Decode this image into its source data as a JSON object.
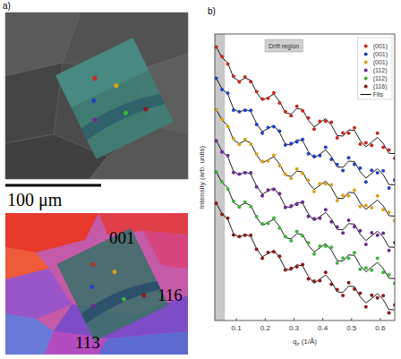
{
  "panel_a": {
    "panel_label": "a)",
    "scale_bar": "100 μm",
    "grain_labels": [
      "001",
      "116",
      "113"
    ]
  },
  "chart_data": {
    "type": "scatter",
    "panel_label": "b)",
    "y_label": "Intensity (arb. units)",
    "x_label": {
      "main": "q",
      "sub": "z",
      "unit": " (1/Å)"
    },
    "annotation": "Drift region",
    "drift_region": [
      0.025,
      0.06
    ],
    "fit_label": "Fits",
    "xlim": [
      0.025,
      0.65
    ],
    "xticks": [
      0.1,
      0.2,
      0.3,
      0.4,
      0.5,
      0.6
    ],
    "ylim": [
      -10,
      100
    ],
    "tick_labels": "x",
    "legend": "top-right",
    "marker": "circle",
    "x": [
      0.03,
      0.05,
      0.07,
      0.09,
      0.11,
      0.13,
      0.15,
      0.17,
      0.19,
      0.21,
      0.23,
      0.25,
      0.27,
      0.29,
      0.31,
      0.33,
      0.35,
      0.37,
      0.39,
      0.41,
      0.43,
      0.45,
      0.47,
      0.49,
      0.51,
      0.53,
      0.55,
      0.57,
      0.59,
      0.61,
      0.63,
      0.65
    ],
    "series": [
      {
        "name": "(001)",
        "color": "#c8281e",
        "values": [
          95,
          91.3,
          88.5,
          83.8,
          81.6,
          83.5,
          81.7,
          77.9,
          75.1,
          75.3,
          77.4,
          73.5,
          70.2,
          68.6,
          72.2,
          70.5,
          67.8,
          63.5,
          66.5,
          66.5,
          66.1,
          60.1,
          62,
          61.9,
          64,
          57.7,
          58.2,
          57.3,
          61.9,
          56.5,
          55.5,
          52.3
        ],
        "fit": [
          95,
          91,
          88.9,
          83.3,
          81.9,
          83.1,
          82.2,
          77.6,
          74.5,
          75.7,
          76.9,
          74.1,
          69.8,
          69.3,
          71.4,
          71,
          66.9,
          64.3,
          65.9,
          67.5,
          65,
          61,
          60.8,
          63.2,
          63,
          59.1,
          56.7,
          58.5,
          60.3,
          58,
          54.2,
          54.1
        ]
      },
      {
        "name": "(001)",
        "color": "#2141c4",
        "values": [
          83,
          78.7,
          77.3,
          70.8,
          70.2,
          70.7,
          70.7,
          65.3,
          61.9,
          64.1,
          64.4,
          62.7,
          57.4,
          58,
          58.6,
          59.5,
          54,
          53.1,
          53.3,
          56.5,
          51.9,
          49.9,
          47.6,
          52.5,
          50,
          48.5,
          43.2,
          47.7,
          46.7,
          47.5,
          40.9,
          43.9
        ],
        "fit": [
          83,
          79,
          76.9,
          71.3,
          69.9,
          71.1,
          70.2,
          65.6,
          62.5,
          63.7,
          64.9,
          62.1,
          57.8,
          57.3,
          59.4,
          59,
          54.9,
          52.3,
          53.9,
          55.5,
          53,
          49,
          48.8,
          51.2,
          51,
          47.1,
          44.7,
          46.5,
          48.3,
          46,
          42.2,
          42.1
        ]
      },
      {
        "name": "(001)",
        "color": "#d9a21c",
        "values": [
          71,
          67.3,
          64.5,
          59.8,
          57.6,
          59.5,
          57.7,
          53.9,
          51.1,
          51.3,
          53.4,
          49.5,
          46.2,
          44.6,
          48.2,
          46.5,
          43.8,
          39.5,
          42.5,
          42.5,
          42.1,
          36.1,
          38,
          37.9,
          40,
          33.7,
          34.2,
          33.3,
          37.9,
          32.5,
          31.5,
          28.3
        ],
        "fit": [
          71,
          67,
          64.9,
          59.3,
          57.9,
          59.1,
          58.2,
          53.6,
          50.5,
          51.7,
          52.9,
          50.1,
          45.8,
          45.3,
          47.4,
          47,
          42.9,
          40.3,
          41.9,
          43.5,
          41,
          37,
          36.8,
          39.2,
          39,
          35.1,
          32.7,
          34.5,
          36.3,
          34,
          30.2,
          30.1
        ]
      },
      {
        "name": "(112)",
        "color": "#6a2c91",
        "values": [
          59,
          54.7,
          53.3,
          46.8,
          46.2,
          46.7,
          46.7,
          41.3,
          37.9,
          40.1,
          40.4,
          38.7,
          33.4,
          34,
          34.6,
          35.5,
          30,
          29.1,
          29.3,
          32.5,
          27.9,
          25.9,
          23.6,
          28.5,
          26,
          24.5,
          19.2,
          23.7,
          22.7,
          23.5,
          16.9,
          19.9
        ],
        "fit": [
          59,
          55,
          52.9,
          47.3,
          45.9,
          47.1,
          46.2,
          41.6,
          38.5,
          39.7,
          40.9,
          38.1,
          33.8,
          33.3,
          35.4,
          35,
          30.9,
          28.3,
          29.9,
          31.5,
          29,
          25,
          24.8,
          27.2,
          27,
          23.1,
          20.7,
          22.5,
          24.3,
          22,
          18.2,
          18.1
        ]
      },
      {
        "name": "(112)",
        "color": "#3cb43c",
        "values": [
          47,
          43.3,
          40.5,
          35.8,
          33.6,
          35.5,
          33.7,
          29.9,
          27.1,
          27.3,
          29.4,
          25.5,
          22.2,
          20.6,
          24.2,
          22.5,
          19.8,
          15.5,
          18.5,
          18.5,
          18.1,
          12.1,
          14,
          13.9,
          16,
          9.7,
          10.2,
          9.3,
          13.9,
          8.5,
          7.5,
          4.3
        ],
        "fit": [
          47,
          43,
          40.9,
          35.3,
          33.9,
          35.1,
          34.2,
          29.6,
          26.5,
          27.7,
          28.9,
          26.1,
          21.8,
          21.3,
          23.4,
          23,
          18.9,
          16.3,
          17.9,
          19.5,
          17,
          13,
          12.8,
          15.2,
          15,
          11.1,
          8.7,
          10.5,
          12.3,
          10,
          6.2,
          6.1
        ]
      },
      {
        "name": "(116)",
        "color": "#8b1a1a",
        "values": [
          35,
          30.7,
          29.3,
          22.8,
          22.2,
          22.7,
          22.7,
          17.3,
          13.9,
          16.1,
          16.4,
          14.7,
          9.4,
          10,
          10.6,
          11.5,
          6,
          5.1,
          5.3,
          8.5,
          3.9,
          1.9,
          -0.4,
          4.5,
          2,
          0.5,
          -4.8,
          -0.3,
          -1.3,
          -0.5,
          -7.1,
          -4.1
        ],
        "fit": [
          35,
          31,
          28.9,
          23.3,
          21.9,
          23.1,
          22.2,
          17.6,
          14.5,
          15.7,
          16.9,
          14.1,
          9.8,
          9.3,
          11.4,
          11,
          6.9,
          4.3,
          5.9,
          7.5,
          5,
          1,
          0.8,
          3.2,
          3,
          -0.9,
          -3.3,
          -1.5,
          0.3,
          -2,
          -5.8,
          -5.9
        ]
      }
    ]
  }
}
